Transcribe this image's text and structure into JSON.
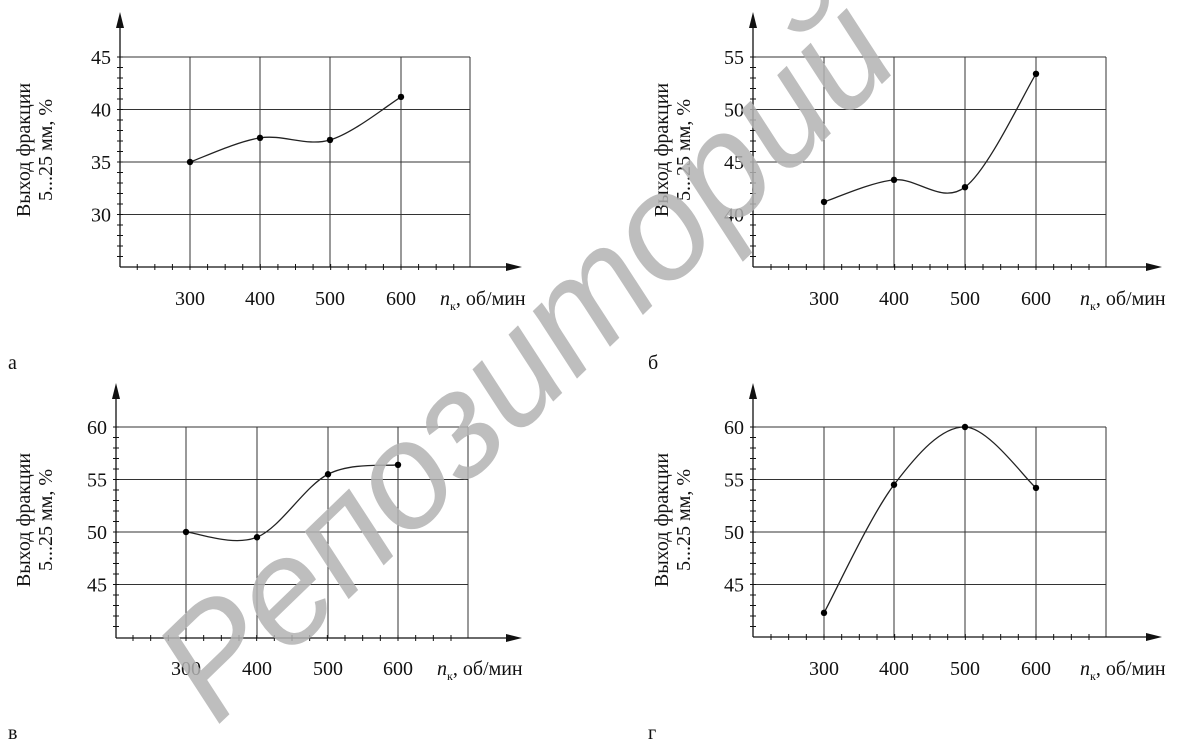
{
  "chart_data": [
    {
      "type": "line",
      "panel_label": "а",
      "ylabel_line1": "Выход фракции",
      "ylabel_line2": "5...25 мм, %",
      "xlabel_var": "n",
      "xlabel_sub": "к",
      "xlabel_unit": ", об/мин",
      "x": [
        300,
        400,
        500,
        600
      ],
      "values": [
        35.0,
        37.3,
        37.1,
        41.2
      ],
      "x_ticks": [
        "300",
        "400",
        "500",
        "600"
      ],
      "y_ticks": [
        30,
        35,
        40,
        45
      ],
      "ylim": [
        25,
        45
      ],
      "grid": true
    },
    {
      "type": "line",
      "panel_label": "б",
      "ylabel_line1": "Выход фракции",
      "ylabel_line2": "5...25 мм, %",
      "xlabel_var": "n",
      "xlabel_sub": "к",
      "xlabel_unit": ", об/мин",
      "x": [
        300,
        400,
        500,
        600
      ],
      "values": [
        41.2,
        43.3,
        42.6,
        53.4
      ],
      "x_ticks": [
        "300",
        "400",
        "500",
        "600"
      ],
      "y_ticks": [
        40,
        45,
        50,
        55
      ],
      "ylim": [
        35,
        55
      ],
      "grid": true
    },
    {
      "type": "line",
      "panel_label": "в",
      "ylabel_line1": "Выход фракции",
      "ylabel_line2": "5...25 мм, %",
      "xlabel_var": "n",
      "xlabel_sub": "к",
      "xlabel_unit": ", об/мин",
      "x": [
        300,
        400,
        500,
        600
      ],
      "values": [
        50.0,
        49.5,
        55.5,
        56.4
      ],
      "x_ticks": [
        "300",
        "400",
        "500",
        "600"
      ],
      "y_ticks": [
        45,
        50,
        55,
        60
      ],
      "ylim": [
        40,
        60
      ],
      "grid": true
    },
    {
      "type": "line",
      "panel_label": "г",
      "ylabel_line1": "Выход фракции",
      "ylabel_line2": "5...25 мм, %",
      "xlabel_var": "n",
      "xlabel_sub": "к",
      "xlabel_unit": ", об/мин",
      "x": [
        300,
        400,
        500,
        600
      ],
      "values": [
        42.3,
        54.5,
        60.0,
        54.2
      ],
      "x_ticks": [
        "300",
        "400",
        "500",
        "600"
      ],
      "y_ticks": [
        45,
        50,
        55,
        60
      ],
      "ylim": [
        40,
        60
      ],
      "grid": true
    }
  ],
  "watermark": {
    "text": "Репозиторий",
    "color": "#b3b3b3"
  },
  "style": {
    "line_color": "#222222",
    "grid_color": "#333333"
  }
}
